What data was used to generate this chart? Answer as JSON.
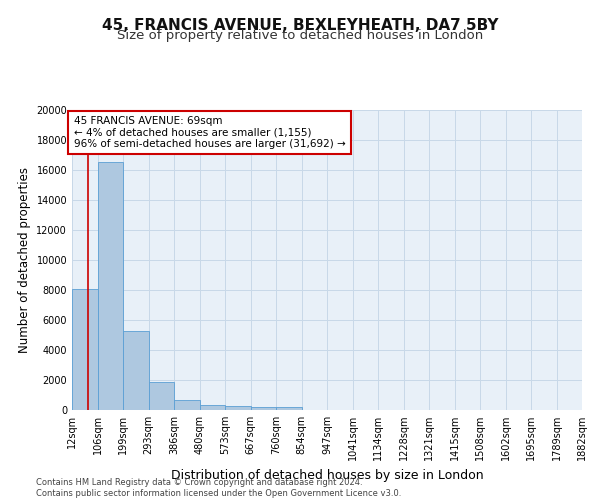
{
  "title1": "45, FRANCIS AVENUE, BEXLEYHEATH, DA7 5BY",
  "title2": "Size of property relative to detached houses in London",
  "xlabel": "Distribution of detached houses by size in London",
  "ylabel": "Number of detached properties",
  "footer1": "Contains HM Land Registry data © Crown copyright and database right 2024.",
  "footer2": "Contains public sector information licensed under the Open Government Licence v3.0.",
  "bins": [
    12,
    106,
    199,
    293,
    386,
    480,
    573,
    667,
    760,
    854,
    947,
    1041,
    1134,
    1228,
    1321,
    1415,
    1508,
    1602,
    1695,
    1789,
    1882
  ],
  "bin_labels": [
    "12sqm",
    "106sqm",
    "199sqm",
    "293sqm",
    "386sqm",
    "480sqm",
    "573sqm",
    "667sqm",
    "760sqm",
    "854sqm",
    "947sqm",
    "1041sqm",
    "1134sqm",
    "1228sqm",
    "1321sqm",
    "1415sqm",
    "1508sqm",
    "1602sqm",
    "1695sqm",
    "1789sqm",
    "1882sqm"
  ],
  "bar_heights": [
    8100,
    16500,
    5300,
    1850,
    700,
    350,
    275,
    200,
    175,
    0,
    0,
    0,
    0,
    0,
    0,
    0,
    0,
    0,
    0,
    0
  ],
  "bar_color": "#aec8e0",
  "bar_edge_color": "#5a9fd4",
  "property_size": 69,
  "vline_color": "#cc0000",
  "annotation_line1": "45 FRANCIS AVENUE: 69sqm",
  "annotation_line2": "← 4% of detached houses are smaller (1,155)",
  "annotation_line3": "96% of semi-detached houses are larger (31,692) →",
  "annotation_box_color": "#ffffff",
  "annotation_border_color": "#cc0000",
  "ylim": [
    0,
    20000
  ],
  "yticks": [
    0,
    2000,
    4000,
    6000,
    8000,
    10000,
    12000,
    14000,
    16000,
    18000,
    20000
  ],
  "grid_color": "#c8d8e8",
  "background_color": "#e8f0f8",
  "title1_fontsize": 11,
  "title2_fontsize": 9.5,
  "ylabel_fontsize": 8.5,
  "xlabel_fontsize": 9,
  "tick_fontsize": 7,
  "annotation_fontsize": 7.5,
  "footer_fontsize": 6
}
